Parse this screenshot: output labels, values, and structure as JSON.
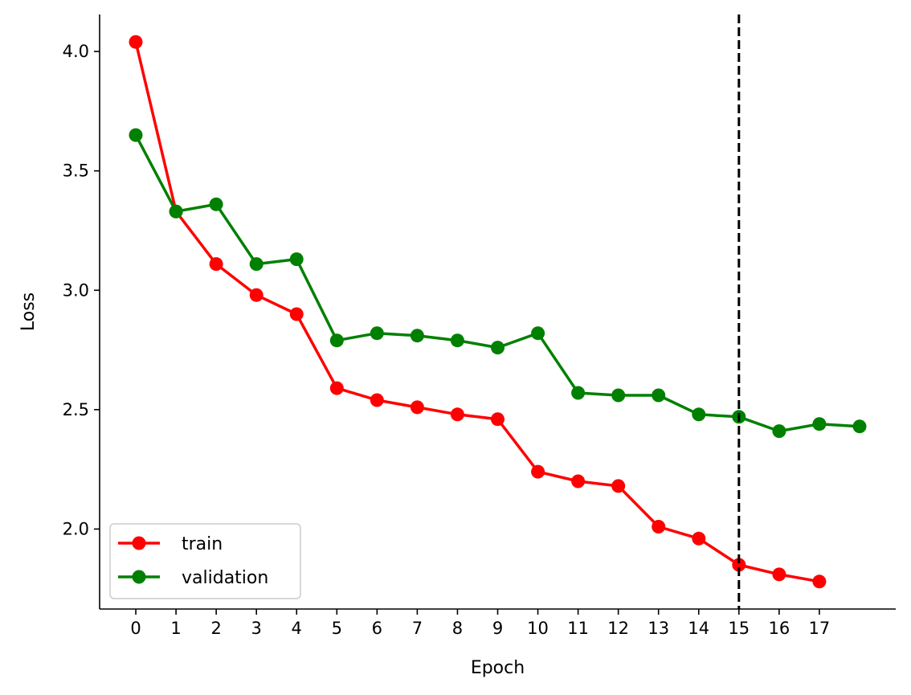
{
  "chart_data": {
    "type": "line",
    "title": "",
    "xlabel": "Epoch",
    "ylabel": "Loss",
    "xlim": [
      -0.9,
      18.9
    ],
    "ylim": [
      1.665,
      4.155
    ],
    "x_ticks": [
      0,
      1,
      2,
      3,
      4,
      5,
      6,
      7,
      8,
      9,
      10,
      11,
      12,
      13,
      14,
      15,
      16,
      17
    ],
    "y_ticks": [
      2.0,
      2.5,
      3.0,
      3.5,
      4.0
    ],
    "y_tick_labels": [
      "2.0",
      "2.5",
      "3.0",
      "3.5",
      "4.0"
    ],
    "grid": false,
    "legend_position": "lower-left",
    "vline": {
      "x": 15,
      "style": "dashed",
      "color": "#000000"
    },
    "series": [
      {
        "name": "train",
        "color": "#ff0000",
        "x": [
          0,
          1,
          2,
          3,
          4,
          5,
          6,
          7,
          8,
          9,
          10,
          11,
          12,
          13,
          14,
          15,
          16,
          17
        ],
        "values": [
          4.04,
          3.33,
          3.11,
          2.98,
          2.9,
          2.59,
          2.54,
          2.51,
          2.48,
          2.46,
          2.24,
          2.2,
          2.18,
          2.01,
          1.96,
          1.85,
          1.81,
          1.78
        ]
      },
      {
        "name": "validation",
        "color": "#008000",
        "x": [
          0,
          1,
          2,
          3,
          4,
          5,
          6,
          7,
          8,
          9,
          10,
          11,
          12,
          13,
          14,
          15,
          16,
          17,
          18
        ],
        "values": [
          3.65,
          3.33,
          3.36,
          3.11,
          3.13,
          2.79,
          2.82,
          2.81,
          2.79,
          2.76,
          2.82,
          2.57,
          2.56,
          2.56,
          2.48,
          2.47,
          2.41,
          2.44,
          2.43
        ]
      }
    ]
  }
}
